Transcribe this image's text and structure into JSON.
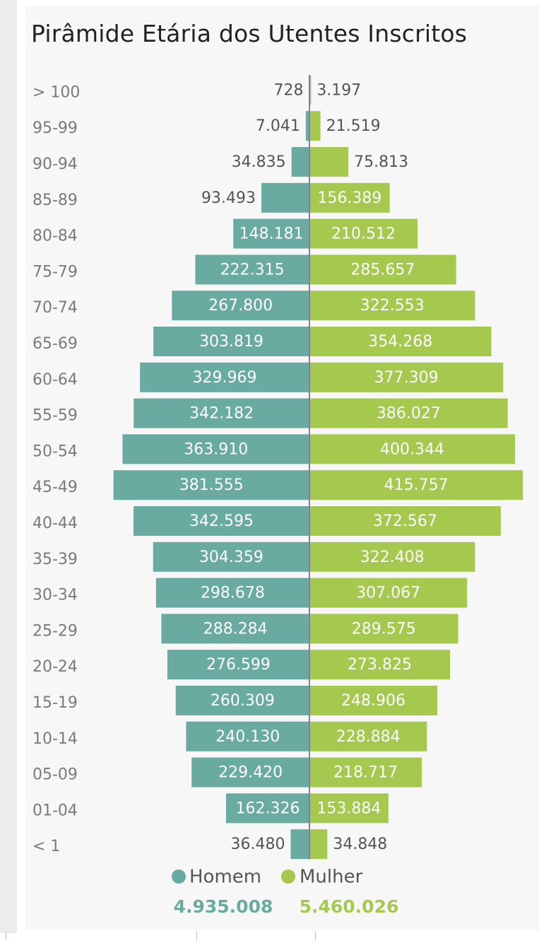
{
  "title": "Pirâmide Etária dos Utentes Inscritos",
  "chart_data": {
    "type": "bar",
    "orientation": "horizontal-population-pyramid",
    "title": "Pirâmide Etária dos Utentes Inscritos",
    "categories": [
      "> 100",
      "95-99",
      "90-94",
      "85-89",
      "80-84",
      "75-79",
      "70-74",
      "65-69",
      "60-64",
      "55-59",
      "50-54",
      "45-49",
      "40-44",
      "35-39",
      "30-34",
      "25-29",
      "20-24",
      "15-19",
      "10-14",
      "05-09",
      "01-04",
      "< 1"
    ],
    "series": [
      {
        "name": "Homem",
        "color": "#6aaba1",
        "values": [
          728,
          7041,
          34835,
          93493,
          148181,
          222315,
          267800,
          303819,
          329969,
          342182,
          363910,
          381555,
          342595,
          304359,
          298678,
          288284,
          276599,
          260309,
          240130,
          229420,
          162326,
          36480
        ],
        "labels": [
          "728",
          "7.041",
          "34.835",
          "93.493",
          "148.181",
          "222.315",
          "267.800",
          "303.819",
          "329.969",
          "342.182",
          "363.910",
          "381.555",
          "342.595",
          "304.359",
          "298.678",
          "288.284",
          "276.599",
          "260.309",
          "240.130",
          "229.420",
          "162.326",
          "36.480"
        ],
        "total": "4.935.008"
      },
      {
        "name": "Mulher",
        "color": "#a5c94f",
        "values": [
          3197,
          21519,
          75813,
          156389,
          210512,
          285657,
          322553,
          354268,
          377309,
          386027,
          400344,
          415757,
          372567,
          322408,
          307067,
          289575,
          273825,
          248906,
          228884,
          218717,
          153884,
          34848
        ],
        "labels": [
          "3.197",
          "21.519",
          "75.813",
          "156.389",
          "210.512",
          "285.657",
          "322.553",
          "354.268",
          "377.309",
          "386.027",
          "400.344",
          "415.757",
          "372.567",
          "322.408",
          "307.067",
          "289.575",
          "273.825",
          "248.906",
          "228.884",
          "218.717",
          "153.884",
          "34.848"
        ],
        "total": "5.460.026"
      }
    ],
    "legend_position": "bottom-center",
    "grid": false
  }
}
